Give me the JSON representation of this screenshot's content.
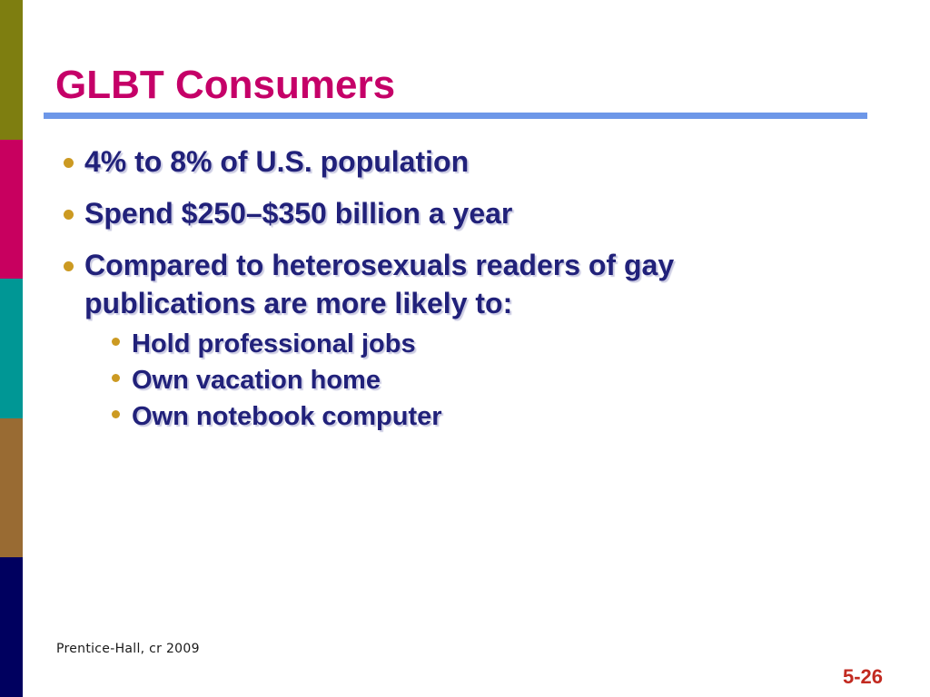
{
  "slide": {
    "title": "GLBT Consumers",
    "bullets": {
      "b1": "4% to 8% of U.S. population",
      "b2": "Spend $250–$350 billion a year",
      "b3": "Compared to heterosexuals readers of gay publications are more likely to:",
      "s1": "Hold professional jobs",
      "s2": "Own vacation home",
      "s3": "Own notebook computer"
    },
    "footer": "Prentice-Hall, cr 2009",
    "page_number": "5-26",
    "colors": {
      "title_text": "#C50068",
      "title_rule": "#6D97E8",
      "body_text": "#21217A",
      "bullet_dot": "#CC9A22",
      "page_number_text": "#C22A20",
      "sidebar_olive": "#7E7E10",
      "sidebar_magenta": "#C8005F",
      "sidebar_teal": "#009795",
      "sidebar_brown": "#996B33",
      "sidebar_navy": "#00005F"
    }
  }
}
